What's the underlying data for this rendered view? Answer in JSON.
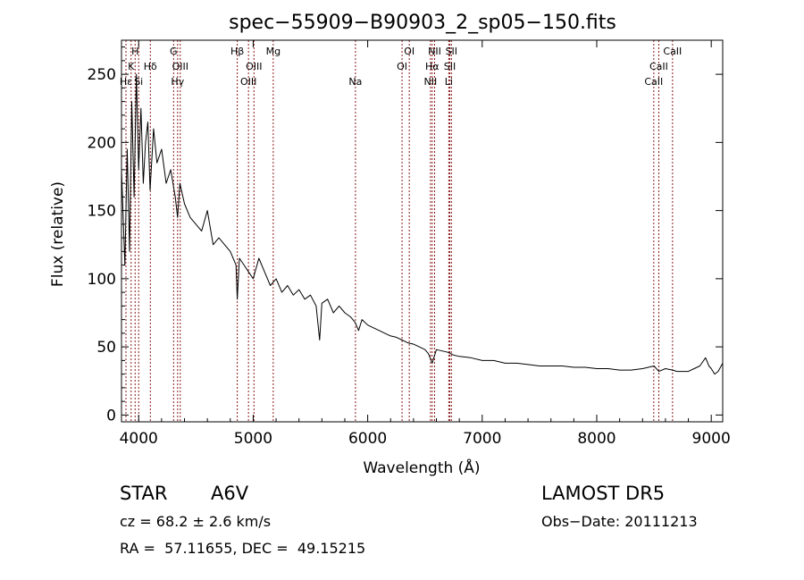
{
  "chart_data": {
    "type": "line",
    "title": "spec−55909−B90903_2_sp05−150.fits",
    "xlabel": "Wavelength (Å)",
    "ylabel": "Flux (relative)",
    "xlim": [
      3850,
      9100
    ],
    "ylim": [
      -5,
      275
    ],
    "x_ticks": [
      4000,
      5000,
      6000,
      7000,
      8000,
      9000
    ],
    "y_ticks": [
      0,
      50,
      100,
      150,
      200,
      250
    ],
    "grid": false,
    "colors": {
      "spectrum": "#000000",
      "lines": "#8b1a1a",
      "axes": "#000000"
    },
    "series": [
      {
        "x": [
          3850,
          3880,
          3900,
          3920,
          3940,
          3960,
          3980,
          4000,
          4020,
          4040,
          4060,
          4080,
          4100,
          4130,
          4160,
          4200,
          4240,
          4280,
          4320,
          4340,
          4360,
          4400,
          4450,
          4500,
          4550,
          4600,
          4650,
          4700,
          4750,
          4800,
          4850,
          4861,
          4880,
          4920,
          4960,
          5000,
          5050,
          5100,
          5150,
          5200,
          5250,
          5300,
          5350,
          5400,
          5450,
          5500,
          5550,
          5580,
          5600,
          5650,
          5700,
          5750,
          5800,
          5850,
          5890,
          5920,
          5950,
          6000,
          6050,
          6100,
          6150,
          6200,
          6250,
          6300,
          6350,
          6400,
          6450,
          6500,
          6530,
          6563,
          6600,
          6650,
          6700,
          6750,
          6800,
          6900,
          7000,
          7100,
          7200,
          7300,
          7400,
          7500,
          7600,
          7700,
          7800,
          7900,
          8000,
          8100,
          8200,
          8300,
          8400,
          8500,
          8542,
          8600,
          8662,
          8700,
          8750,
          8800,
          8850,
          8900,
          8950,
          8980,
          9000,
          9030,
          9060,
          9100
        ],
        "y": [
          180,
          110,
          195,
          120,
          230,
          160,
          250,
          180,
          225,
          170,
          200,
          215,
          165,
          210,
          185,
          195,
          170,
          180,
          160,
          145,
          170,
          155,
          145,
          140,
          135,
          150,
          125,
          130,
          125,
          120,
          110,
          85,
          115,
          110,
          105,
          100,
          115,
          105,
          95,
          100,
          90,
          95,
          88,
          92,
          85,
          88,
          80,
          55,
          82,
          85,
          75,
          80,
          75,
          72,
          68,
          62,
          70,
          66,
          64,
          62,
          60,
          58,
          57,
          55,
          53,
          52,
          50,
          48,
          45,
          38,
          48,
          47,
          46,
          44,
          43,
          42,
          40,
          40,
          38,
          38,
          37,
          36,
          36,
          36,
          35,
          35,
          34,
          34,
          33,
          33,
          34,
          36,
          32,
          34,
          33,
          32,
          32,
          32,
          34,
          36,
          42,
          36,
          34,
          30,
          32,
          38
        ]
      }
    ],
    "spectral_lines": [
      {
        "name": "K",
        "x": 3934,
        "row": 2
      },
      {
        "name": "H",
        "x": 3969,
        "row": 1
      },
      {
        "name": "Hδ",
        "x": 4102,
        "row": 2
      },
      {
        "name": "G",
        "x": 4305,
        "row": 1
      },
      {
        "name": "OIII",
        "x": 4363,
        "row": 2
      },
      {
        "name": "Hγ",
        "x": 4340,
        "row": 3
      },
      {
        "name": "Hε",
        "x": 3889,
        "row": 3
      },
      {
        "name": "Si",
        "x": 4000,
        "row": 3
      },
      {
        "name": "Hβ",
        "x": 4861,
        "row": 1
      },
      {
        "name": "OIII",
        "x": 4959,
        "row": 3
      },
      {
        "name": "OIII",
        "x": 5007,
        "row": 2
      },
      {
        "name": "Mg",
        "x": 5175,
        "row": 1
      },
      {
        "name": "Na",
        "x": 5893,
        "row": 3
      },
      {
        "name": "OI",
        "x": 6300,
        "row": 2
      },
      {
        "name": "OI",
        "x": 6363,
        "row": 1
      },
      {
        "name": "NII",
        "x": 6548,
        "row": 3
      },
      {
        "name": "Hα",
        "x": 6563,
        "row": 2
      },
      {
        "name": "NII",
        "x": 6584,
        "row": 1
      },
      {
        "name": "SII",
        "x": 6717,
        "row": 2
      },
      {
        "name": "SII",
        "x": 6731,
        "row": 1
      },
      {
        "name": "Li",
        "x": 6708,
        "row": 3
      },
      {
        "name": "CaII",
        "x": 8498,
        "row": 3
      },
      {
        "name": "CaII",
        "x": 8542,
        "row": 2
      },
      {
        "name": "CaII",
        "x": 8662,
        "row": 1
      }
    ]
  },
  "info": {
    "object_type": "STAR",
    "subclass": "A6V",
    "survey": "LAMOST DR5",
    "redshift": "cz = 68.2 ± 2.6 km/s",
    "obs_date": "Obs−Date: 20111213",
    "coords": "RA =  57.11655, DEC =  49.15215"
  }
}
